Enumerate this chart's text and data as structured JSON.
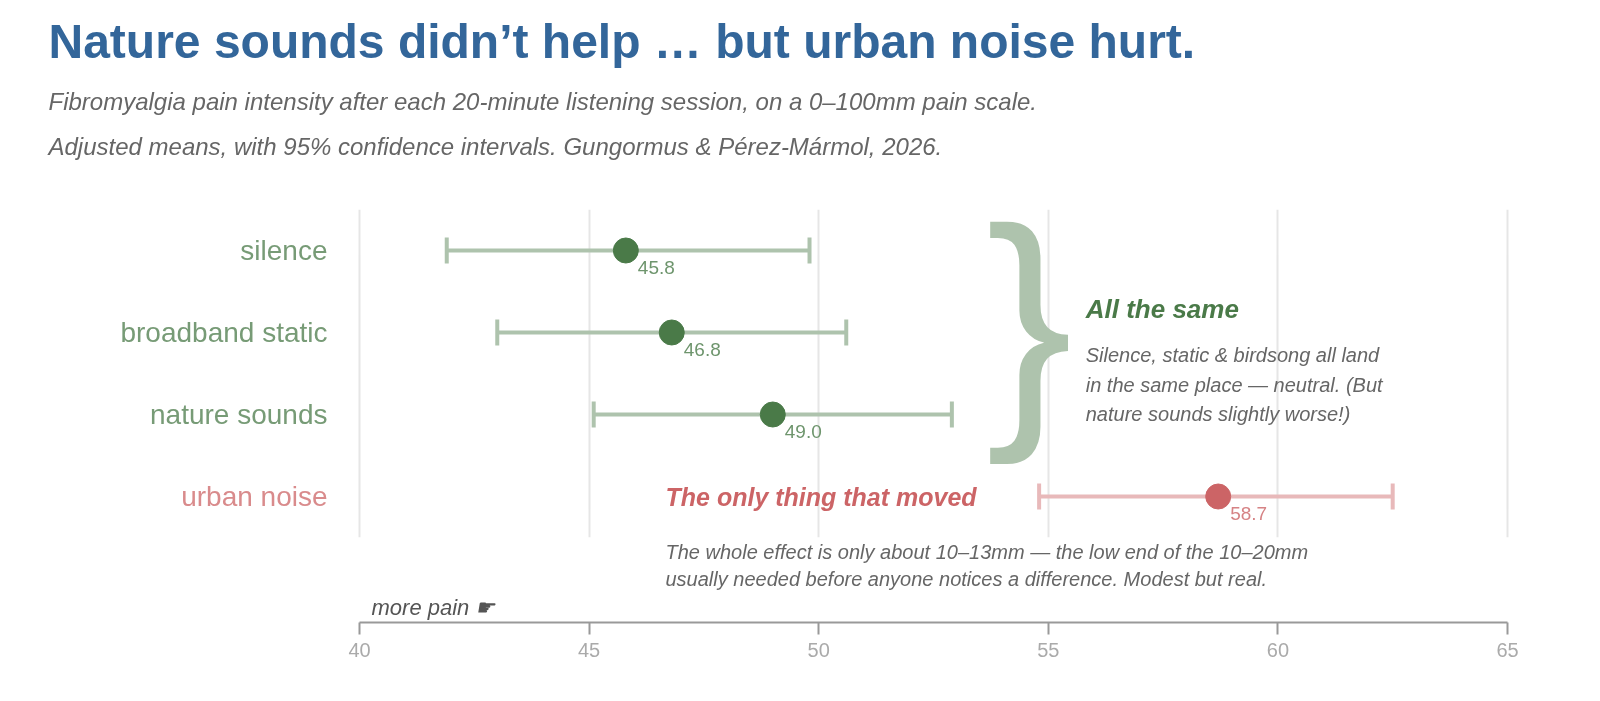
{
  "chart_data": {
    "type": "scatter",
    "orientation": "horizontal",
    "title": "Nature sounds didn’t help … but urban noise hurt.",
    "subtitle": "Fibromyalgia pain intensity after each 20-minute listening session, on a 0–100mm pain scale.\nAdjusted means, with 95% confidence intervals. Gungormus & Pérez-Mármol, 2026.",
    "xlabel": "more pain ☛",
    "categories": [
      "silence",
      "broadband static",
      "nature sounds",
      "urban noise"
    ],
    "series": [
      {
        "color": "#4a7a48",
        "values": [
          45.8,
          46.8,
          49.0,
          null
        ],
        "errors": [
          [
            41.9,
            49.8
          ],
          [
            43.0,
            50.6
          ],
          [
            45.1,
            52.9
          ],
          null
        ],
        "value_labels": [
          "45.8",
          "46.8",
          "49.0",
          null
        ]
      },
      {
        "color": "#cc6466",
        "values": [
          null,
          null,
          null,
          58.7
        ],
        "errors": [
          null,
          null,
          null,
          [
            54.8,
            62.5
          ]
        ],
        "value_labels": [
          null,
          null,
          null,
          "58.7"
        ]
      }
    ],
    "xlim": [
      40,
      65
    ],
    "xticks": [
      40,
      45,
      50,
      55,
      60,
      65
    ],
    "grid": "x",
    "marker": "circle",
    "annotations": [
      "}",
      "All the same",
      "Silence, static & birdsong all land in the same place — neutral. (But nature sounds slightly worse!)",
      "The only thing that moved",
      "The whole effect is only about 10–13mm — the low end of the 10–20mm usually needed before anyone notices a difference. Modest but real."
    ]
  }
}
